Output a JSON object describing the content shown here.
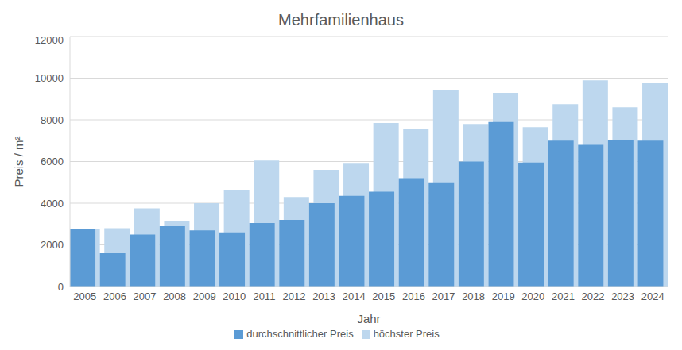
{
  "chart_data": {
    "type": "bar",
    "title": "Mehrfamilienhaus",
    "x_label": "Jahr",
    "y_label": "Preis / m²",
    "categories": [
      "2005",
      "2006",
      "2007",
      "2008",
      "2009",
      "2010",
      "2011",
      "2012",
      "2013",
      "2014",
      "2015",
      "2016",
      "2017",
      "2018",
      "2019",
      "2020",
      "2021",
      "2022",
      "2023",
      "2024"
    ],
    "series": [
      {
        "name": "höchster Preis",
        "color": "#bdd7ee",
        "values": [
          2750,
          2800,
          3750,
          3150,
          4000,
          4650,
          6050,
          4300,
          5600,
          5900,
          7850,
          7550,
          9450,
          7800,
          9300,
          7650,
          8750,
          9900,
          8600,
          9750
        ]
      },
      {
        "name": "durchschnittlicher Preis",
        "color": "#5b9bd5",
        "values": [
          2750,
          1600,
          2500,
          2900,
          2700,
          2600,
          3050,
          3200,
          4000,
          4350,
          4550,
          5200,
          5000,
          6000,
          7900,
          5950,
          7000,
          6800,
          7050,
          7000
        ]
      }
    ],
    "ylim": [
      0,
      12000
    ],
    "yticks": [
      0,
      2000,
      4000,
      6000,
      8000,
      10000,
      12000
    ],
    "grid": true,
    "stacked": false,
    "legend": "bottom"
  }
}
